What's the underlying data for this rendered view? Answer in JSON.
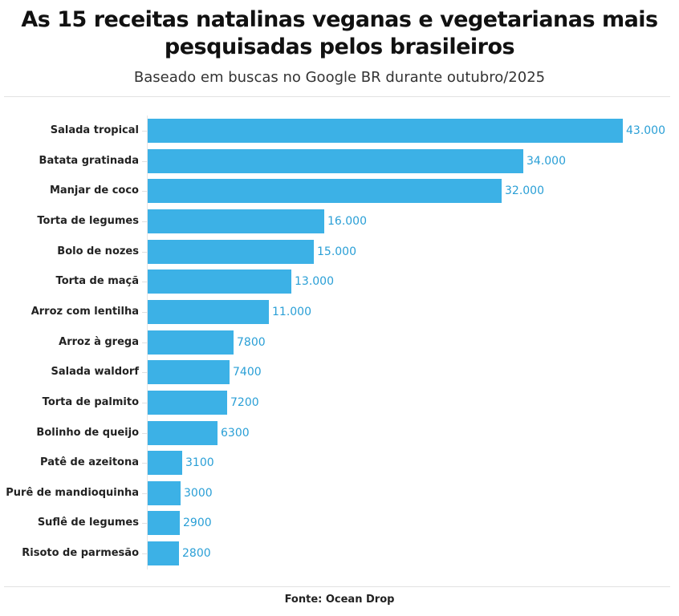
{
  "header": {
    "title_line1": "As 15 receitas natalinas veganas e vegetarianas mais",
    "title_line2": "pesquisadas pelos brasileiros",
    "subtitle": "Baseado em buscas no Google BR durante outubro/2025"
  },
  "footer": {
    "source": "Fonte: Ocean Drop"
  },
  "colors": {
    "bar": "#3cb1e6",
    "value_label": "#2a9fd6"
  },
  "chart_data": {
    "type": "bar",
    "orientation": "horizontal",
    "title": "As 15 receitas natalinas veganas e vegetarianas mais pesquisadas pelos brasileiros",
    "subtitle": "Baseado em buscas no Google BR durante outubro/2025",
    "source": "Fonte: Ocean Drop",
    "xlabel": "",
    "ylabel": "",
    "grid": false,
    "legend": null,
    "categories": [
      "Salada tropical",
      "Batata gratinada",
      "Manjar de coco",
      "Torta de legumes",
      "Bolo de nozes",
      "Torta de maçã",
      "Arroz com lentilha",
      "Arroz à grega",
      "Salada waldorf",
      "Torta de palmito",
      "Bolinho de queijo",
      "Patê de azeitona",
      "Purê de mandioquinha",
      "Suflê de legumes",
      "Risoto de parmesão"
    ],
    "values": [
      43000,
      34000,
      32000,
      16000,
      15000,
      13000,
      11000,
      7800,
      7400,
      7200,
      6300,
      3100,
      3000,
      2900,
      2800
    ],
    "value_labels": [
      "43.000",
      "34.000",
      "32.000",
      "16.000",
      "15.000",
      "13.000",
      "11.000",
      "7800",
      "7400",
      "7200",
      "6300",
      "3100",
      "3000",
      "2900",
      "2800"
    ],
    "xlim": [
      0,
      43000
    ]
  }
}
